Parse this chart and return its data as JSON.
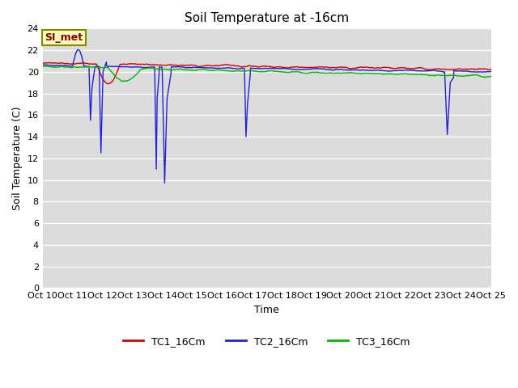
{
  "title": "Soil Temperature at -16cm",
  "xlabel": "Time",
  "ylabel": "Soil Temperature (C)",
  "ylim": [
    0,
    24
  ],
  "yticks": [
    0,
    2,
    4,
    6,
    8,
    10,
    12,
    14,
    16,
    18,
    20,
    22,
    24
  ],
  "xtick_labels": [
    "Oct 10",
    "Oct 11",
    "Oct 12",
    "Oct 13",
    "Oct 14",
    "Oct 15",
    "Oct 16",
    "Oct 17",
    "Oct 18",
    "Oct 19",
    "Oct 20",
    "Oct 21",
    "Oct 22",
    "Oct 23",
    "Oct 24",
    "Oct 25"
  ],
  "bg_color": "#dcdcdc",
  "fig_color": "#ffffff",
  "line_colors": {
    "TC1": "#dd0000",
    "TC2": "#2222dd",
    "TC3": "#00bb00"
  },
  "line_width": 1.0,
  "legend_labels": [
    "TC1_16Cm",
    "TC2_16Cm",
    "TC3_16Cm"
  ],
  "annotation_text": "SI_met",
  "annotation_color": "#880000",
  "annotation_bg": "#ffffbb",
  "annotation_border": "#888800"
}
